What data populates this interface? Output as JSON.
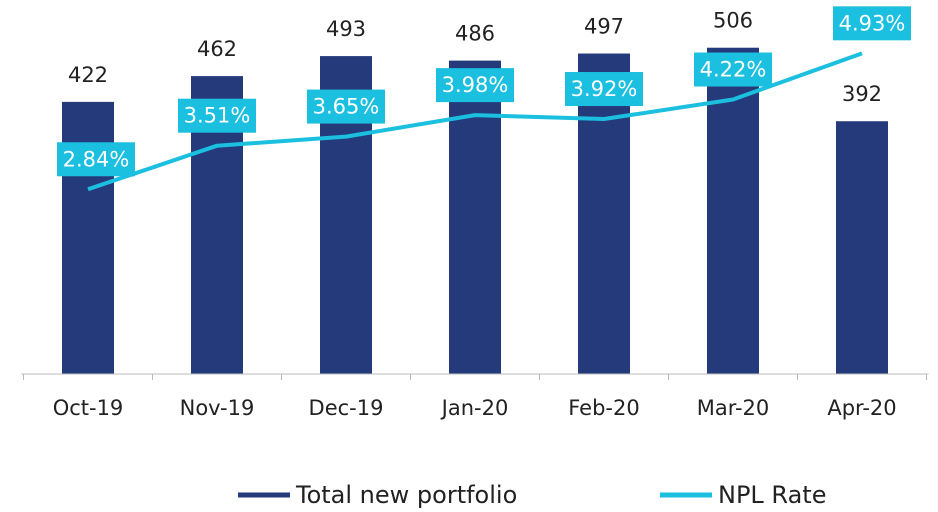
{
  "chart_data": {
    "type": "bar",
    "categories": [
      "Oct-19",
      "Nov-19",
      "Dec-19",
      "Jan-20",
      "Feb-20",
      "Mar-20",
      "Apr-20"
    ],
    "series": [
      {
        "name": "Total new portfolio",
        "color": "#253a7b",
        "type": "bar",
        "values": [
          422,
          462,
          493,
          486,
          497,
          506,
          392
        ]
      },
      {
        "name": "NPL Rate",
        "color": "#1bbfdf",
        "type": "line",
        "axis": "y2",
        "values": [
          2.84,
          3.51,
          3.65,
          3.98,
          3.92,
          4.22,
          4.93
        ],
        "value_labels": [
          "2.84%",
          "3.51%",
          "3.65%",
          "3.98%",
          "3.92%",
          "4.22%",
          "4.93%"
        ]
      }
    ],
    "ylim": [
      0,
      580
    ],
    "y2lim": [
      0,
      5.75
    ],
    "grid": false,
    "legend": "bottom"
  }
}
